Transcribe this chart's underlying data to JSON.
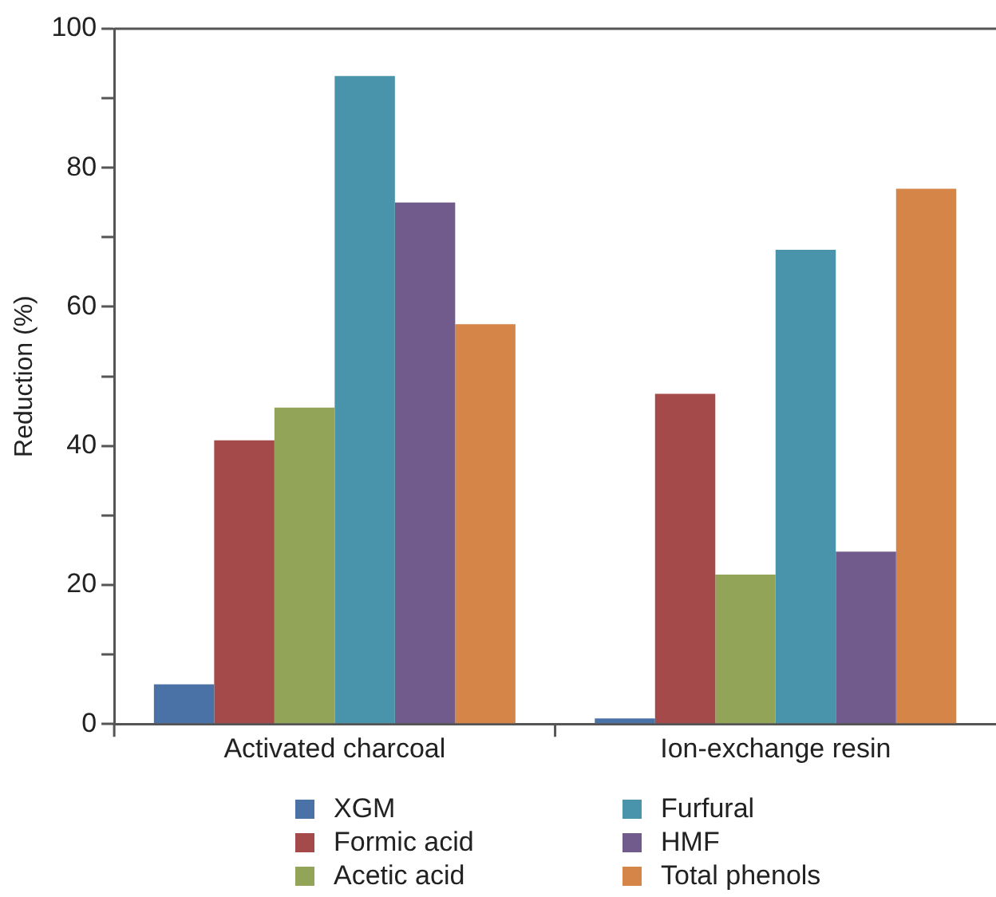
{
  "chart_data": {
    "type": "bar",
    "ylabel": "Reduction (%)",
    "categories": [
      "Activated charcoal",
      "Ion-exchange resin"
    ],
    "series": [
      {
        "name": "XGM",
        "color": "#4a72a6",
        "values": [
          5.7,
          0.8
        ]
      },
      {
        "name": "Formic acid",
        "color": "#a54a4a",
        "values": [
          40.8,
          47.5
        ]
      },
      {
        "name": "Acetic acid",
        "color": "#92a458",
        "values": [
          45.5,
          21.5
        ]
      },
      {
        "name": "Furfural",
        "color": "#4994aa",
        "values": [
          93.2,
          68.2
        ]
      },
      {
        "name": "HMF",
        "color": "#715a8c",
        "values": [
          75.0,
          24.8
        ]
      },
      {
        "name": "Total phenols",
        "color": "#d48547",
        "values": [
          57.5,
          77.0
        ]
      }
    ],
    "ylim": [
      0,
      100
    ],
    "yticks": [
      0,
      {
        "value": 10,
        "label": null
      },
      20,
      {
        "value": 30,
        "label": null
      },
      40,
      {
        "value": 50,
        "label": null
      },
      60,
      {
        "value": 70,
        "label": null
      },
      80,
      {
        "value": 90,
        "label": null
      },
      100
    ],
    "grid": false,
    "legend": "bottom"
  }
}
